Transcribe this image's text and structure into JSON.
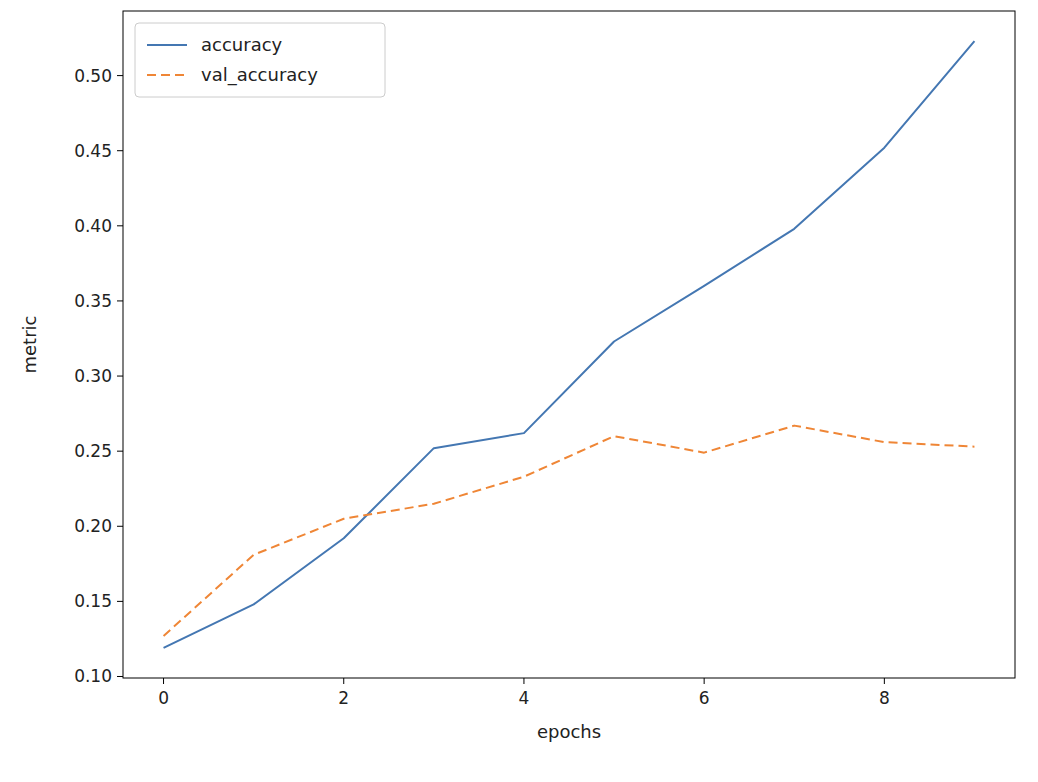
{
  "chart_data": {
    "type": "line",
    "x_label": "epochs",
    "y_label": "metric",
    "x": [
      0,
      1,
      2,
      3,
      4,
      5,
      6,
      7,
      8,
      9
    ],
    "series": [
      {
        "name": "accuracy",
        "color": "#4477b2",
        "line_style": "solid",
        "values": [
          0.119,
          0.148,
          0.192,
          0.252,
          0.262,
          0.323,
          0.36,
          0.398,
          0.452,
          0.523
        ]
      },
      {
        "name": "val_accuracy",
        "color": "#ef8636",
        "line_style": "dashed",
        "values": [
          0.127,
          0.181,
          0.205,
          0.215,
          0.233,
          0.26,
          0.249,
          0.267,
          0.256,
          0.253
        ]
      }
    ],
    "xlim": [
      -0.45,
      9.45
    ],
    "xticks": [
      0,
      2,
      4,
      6,
      8
    ],
    "ylim": [
      0.099,
      0.543
    ],
    "yticks": [
      {
        "value": 0.1,
        "label": "0.10"
      },
      0.15,
      {
        "value": 0.2,
        "label": "0.20"
      },
      0.25,
      {
        "value": 0.3,
        "label": "0.30"
      },
      0.35,
      {
        "value": 0.4,
        "label": "0.40"
      },
      0.45,
      {
        "value": 0.5,
        "label": "0.50"
      }
    ],
    "grid": false,
    "legend": "upper left"
  }
}
